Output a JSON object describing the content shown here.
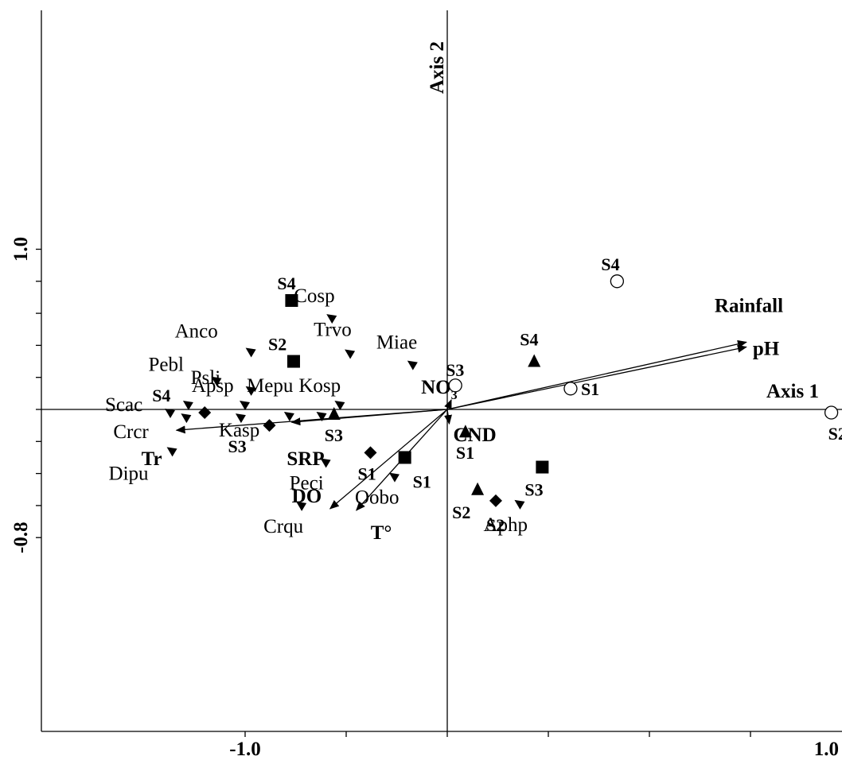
{
  "chart_data": {
    "type": "scatter",
    "subtype": "ordination biplot",
    "xlim": [
      -1.0,
      1.0
    ],
    "ylim": [
      -0.8,
      1.0
    ],
    "x_tick_labels": [
      {
        "value": -1.0,
        "text": "-1.0"
      },
      {
        "value": 1.0,
        "text": "1.0"
      }
    ],
    "y_tick_labels": [
      {
        "value": 1.0,
        "text": "1.0"
      },
      {
        "value": -0.8,
        "text": "-0.8"
      }
    ],
    "axis_labels": {
      "axis1": "Axis 1",
      "axis2": "Axis 2"
    },
    "grid": false,
    "species": [
      {
        "name": "Cosp",
        "x": -0.57,
        "y": 0.57
      },
      {
        "name": "Anco",
        "x": -0.97,
        "y": 0.36
      },
      {
        "name": "Trvo",
        "x": -0.48,
        "y": 0.35
      },
      {
        "name": "Miae",
        "x": -0.17,
        "y": 0.28
      },
      {
        "name": "Pebl",
        "x": -1.14,
        "y": 0.18
      },
      {
        "name": "Psli",
        "x": -0.97,
        "y": 0.12
      },
      {
        "name": "Scac",
        "x": -1.37,
        "y": -0.02
      },
      {
        "name": "Apsp",
        "x": -1.28,
        "y": 0.03
      },
      {
        "name": "Mepu",
        "x": -1.0,
        "y": 0.03
      },
      {
        "name": "Kosp",
        "x": -0.53,
        "y": 0.03
      },
      {
        "name": "Crcr",
        "x": -1.29,
        "y": -0.05
      },
      {
        "name": "Kasp",
        "x": -1.02,
        "y": -0.05
      },
      {
        "name": "Dipu",
        "x": -1.36,
        "y": -0.26
      },
      {
        "name": "Peci",
        "x": -0.6,
        "y": -0.33
      },
      {
        "name": "Oobo",
        "x": -0.26,
        "y": -0.42
      },
      {
        "name": "Crqu",
        "x": -0.72,
        "y": -0.6
      },
      {
        "name": "Aphp",
        "x": 0.36,
        "y": -0.59
      }
    ],
    "unlabeled_species": [
      {
        "x": -0.78,
        "y": -0.04
      },
      {
        "x": -0.62,
        "y": -0.04
      }
    ],
    "sites": [
      {
        "name": "S1",
        "group": "open-circle",
        "x": 0.61,
        "y": 0.13
      },
      {
        "name": "S2",
        "group": "open-circle",
        "x": 1.9,
        "y": -0.02
      },
      {
        "name": "S3",
        "group": "open-circle",
        "x": 0.04,
        "y": 0.15
      },
      {
        "name": "S4",
        "group": "open-circle",
        "x": 0.84,
        "y": 0.8
      },
      {
        "name": "S1",
        "group": "square",
        "x": -0.21,
        "y": -0.3
      },
      {
        "name": "S2",
        "group": "square",
        "x": -0.76,
        "y": 0.3
      },
      {
        "name": "S3",
        "group": "square",
        "x": 0.47,
        "y": -0.36
      },
      {
        "name": "S4",
        "group": "square",
        "x": -0.77,
        "y": 0.68
      },
      {
        "name": "S1",
        "group": "triangle",
        "x": 0.09,
        "y": -0.14
      },
      {
        "name": "S2",
        "group": "triangle",
        "x": 0.15,
        "y": -0.5
      },
      {
        "name": "S3",
        "group": "triangle",
        "x": -0.56,
        "y": -0.03
      },
      {
        "name": "S4",
        "group": "triangle",
        "x": 0.43,
        "y": 0.3
      },
      {
        "name": "S1",
        "group": "diamond",
        "x": -0.38,
        "y": -0.27
      },
      {
        "name": "S2",
        "group": "diamond",
        "x": 0.24,
        "y": -0.57
      },
      {
        "name": "S3",
        "group": "diamond",
        "x": -0.88,
        "y": -0.1
      },
      {
        "name": "S4",
        "group": "diamond",
        "x": -1.2,
        "y": -0.02
      }
    ],
    "environmental_vectors": [
      {
        "name": "Rainfall",
        "x": 1.48,
        "y": 0.42
      },
      {
        "name": "pH",
        "x": 1.48,
        "y": 0.39
      },
      {
        "name": "NO3-",
        "x": 0.02,
        "y": 0.06
      },
      {
        "name": "CND",
        "x": 0.01,
        "y": -0.09
      },
      {
        "name": "Tr",
        "x": -1.34,
        "y": -0.13
      },
      {
        "name": "SRP",
        "x": -0.77,
        "y": -0.08
      },
      {
        "name": "DO",
        "x": -0.58,
        "y": -0.62
      },
      {
        "name": "T°",
        "x": -0.45,
        "y": -0.63
      }
    ]
  }
}
